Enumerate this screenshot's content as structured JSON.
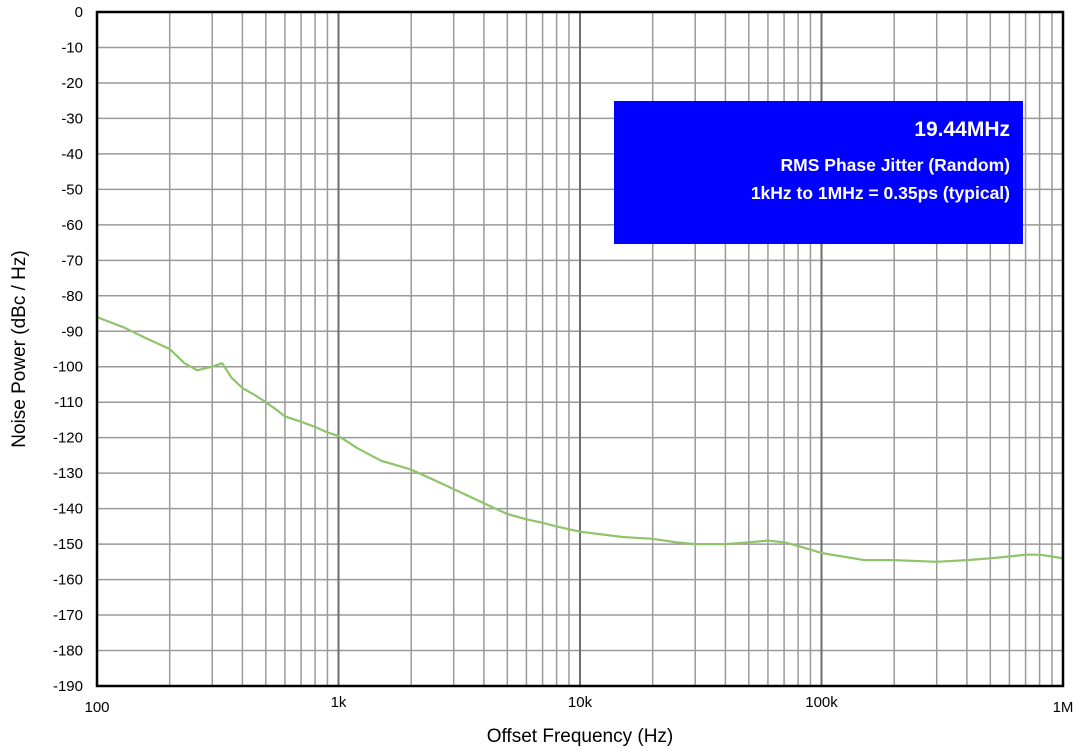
{
  "chart_data": {
    "type": "line",
    "xlabel": "Offset Frequency (Hz)",
    "ylabel": "Noise Power (dBc / Hz)",
    "x_scale": "log",
    "xlim": [
      100,
      1000000
    ],
    "ylim": [
      -190,
      0
    ],
    "x_ticks": [
      {
        "value": 100,
        "label": "100"
      },
      {
        "value": 1000,
        "label": "1k"
      },
      {
        "value": 10000,
        "label": "10k"
      },
      {
        "value": 100000,
        "label": "100k"
      },
      {
        "value": 1000000,
        "label": "1M"
      }
    ],
    "y_ticks": [
      0,
      -10,
      -20,
      -30,
      -40,
      -50,
      -60,
      -70,
      -80,
      -90,
      -100,
      -110,
      -120,
      -130,
      -140,
      -150,
      -160,
      -170,
      -180,
      -190
    ],
    "grid": true,
    "line_color": "#8fc46a",
    "series": [
      {
        "x": [
          100,
          130,
          160,
          200,
          230,
          260,
          300,
          330,
          360,
          400,
          450,
          500,
          550,
          600,
          700,
          800,
          900,
          1000,
          1200,
          1500,
          2000,
          2500,
          3000,
          4000,
          5000,
          6000,
          7000,
          8000,
          10000,
          15000,
          20000,
          25000,
          30000,
          40000,
          50000,
          60000,
          70000,
          80000,
          100000,
          150000,
          200000,
          300000,
          400000,
          500000,
          600000,
          700000,
          800000,
          900000,
          1000000
        ],
        "y": [
          -86,
          -89,
          -92,
          -95,
          -99,
          -101,
          -100,
          -99,
          -103,
          -106,
          -108,
          -110,
          -112,
          -114,
          -115.5,
          -117,
          -118.5,
          -119.5,
          -123,
          -126.5,
          -129,
          -132,
          -134.5,
          -138.5,
          -141.5,
          -143,
          -144,
          -145,
          -146.5,
          -148,
          -148.5,
          -149.5,
          -150,
          -150,
          -149.5,
          -149,
          -149.5,
          -150.5,
          -152.5,
          -154.5,
          -154.5,
          -155,
          -154.5,
          -154,
          -153.5,
          -153,
          -153,
          -153.5,
          -154
        ]
      }
    ]
  },
  "info_box": {
    "title": "19.44MHz",
    "line1": "RMS Phase Jitter (Random)",
    "line2": "1kHz to 1MHz = 0.35ps (typical)",
    "background": "#0000ff"
  }
}
